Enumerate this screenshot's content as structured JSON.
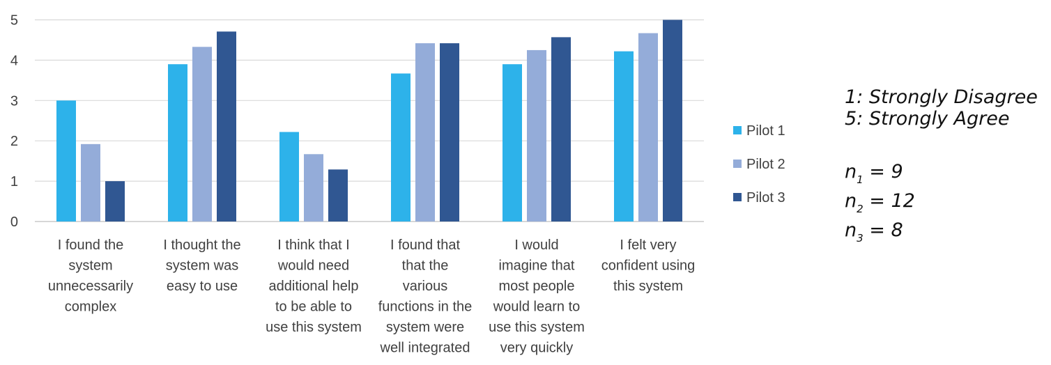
{
  "chart_data": {
    "type": "bar",
    "categories": [
      [
        "I found the",
        "system",
        "unnecessarily",
        "complex"
      ],
      [
        "I thought the",
        "system was",
        "easy to use"
      ],
      [
        "I think that I",
        "would need",
        "additional help",
        "to be able to",
        "use this system"
      ],
      [
        "I found that",
        "that the",
        "various",
        "functions in the",
        "system were",
        "well integrated"
      ],
      [
        "I would",
        "imagine that",
        "most people",
        "would learn to",
        "use this system",
        "very quickly"
      ],
      [
        "I felt very",
        "confident using",
        "this system"
      ]
    ],
    "series": [
      {
        "name": "Pilot 1",
        "color": "#2db2ea",
        "values": [
          3.0,
          3.9,
          2.22,
          3.67,
          3.9,
          4.22
        ]
      },
      {
        "name": "Pilot 2",
        "color": "#94acd9",
        "values": [
          1.92,
          4.33,
          1.67,
          4.42,
          4.25,
          4.67
        ]
      },
      {
        "name": "Pilot 3",
        "color": "#305792",
        "values": [
          1.0,
          4.71,
          1.29,
          4.42,
          4.57,
          5.0
        ]
      }
    ],
    "y_ticks": [
      "0",
      "1",
      "2",
      "3",
      "4",
      "5"
    ],
    "ylim": [
      0,
      5
    ],
    "grid": true,
    "legend_position": "right"
  },
  "notes": {
    "scale_low": "1: Strongly Disagree",
    "scale_high": "5: Strongly Agree",
    "samples": [
      {
        "var": "n",
        "sub": "1",
        "rest": " = 9"
      },
      {
        "var": "n",
        "sub": "2",
        "rest": " = 12"
      },
      {
        "var": "n",
        "sub": "3",
        "rest": " = 8"
      }
    ]
  }
}
